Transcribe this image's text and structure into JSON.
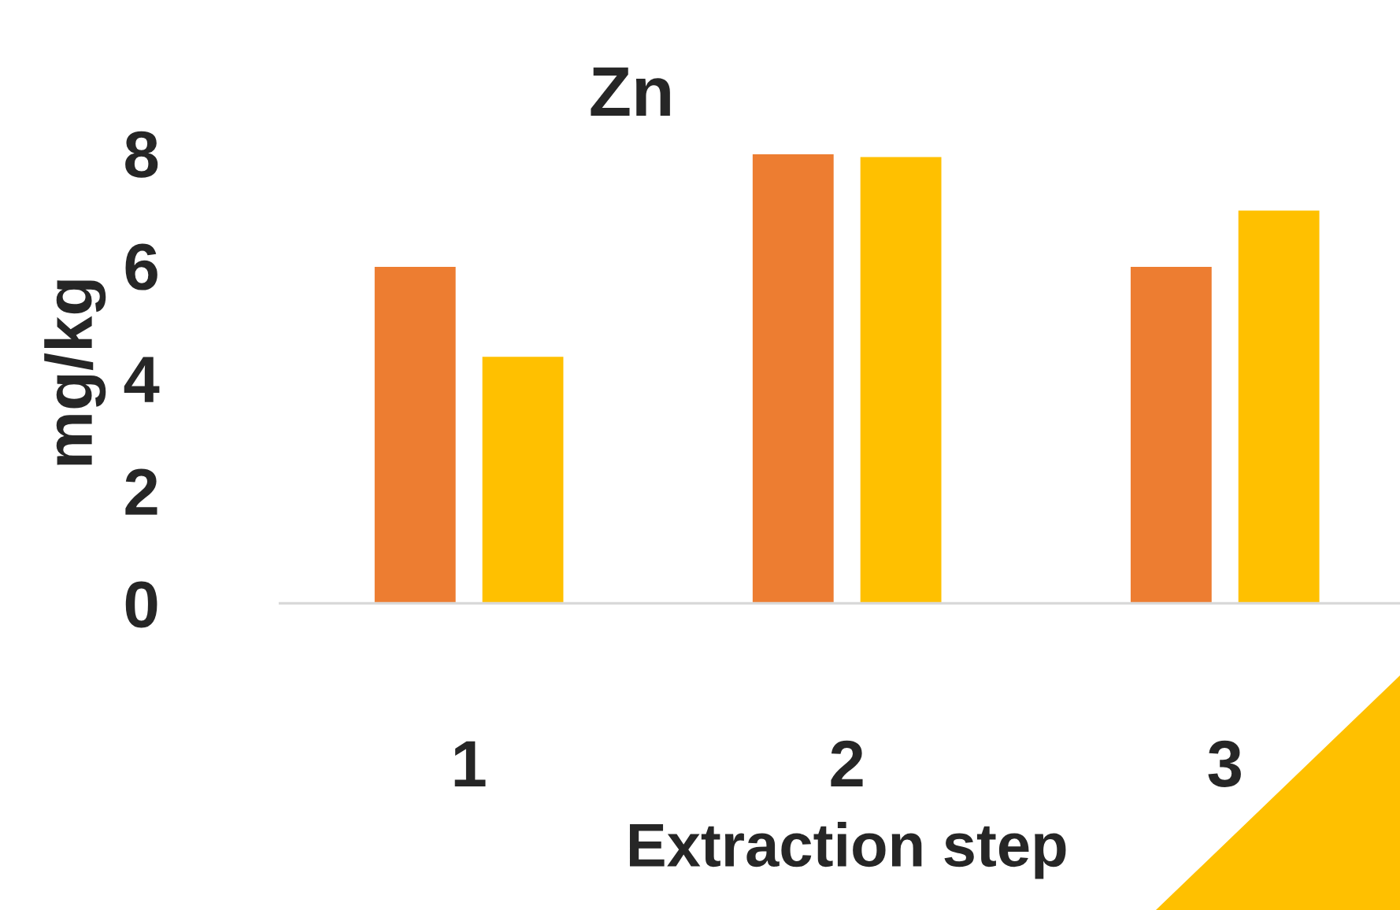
{
  "chart_data": {
    "type": "bar",
    "title": "Zn",
    "xlabel": "Extraction step",
    "ylabel": "mg/kg",
    "categories": [
      "1",
      "2",
      "3"
    ],
    "series": [
      {
        "color": "#ed7d31",
        "values": [
          6.0,
          8.0,
          6.0
        ]
      },
      {
        "color": "#ffc000",
        "values": [
          4.4,
          7.95,
          7.0
        ]
      }
    ],
    "ylim": [
      0,
      8.2
    ],
    "yticks": [
      0,
      2,
      4,
      6,
      8
    ],
    "grid": false,
    "legend": false
  }
}
